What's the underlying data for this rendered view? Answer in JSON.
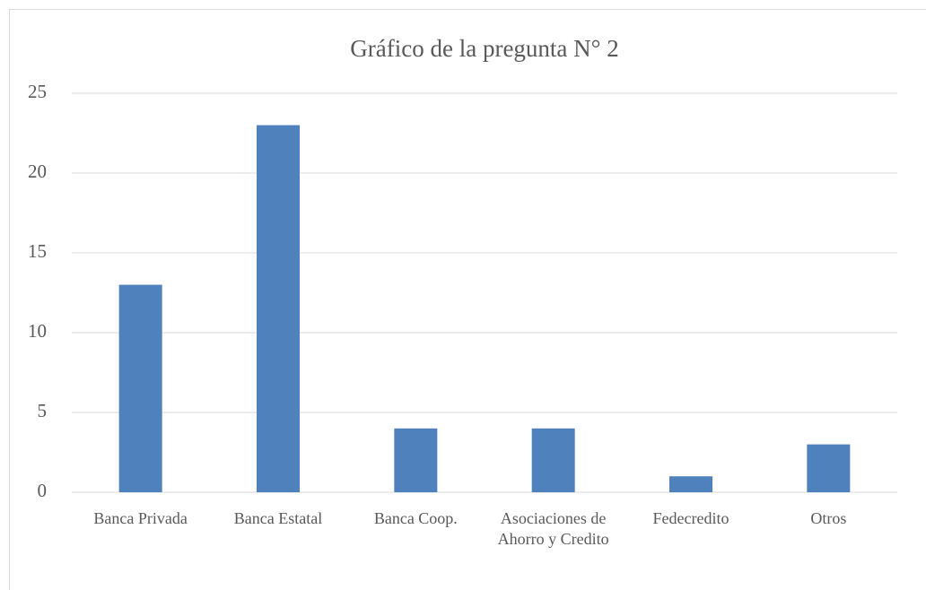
{
  "chart_data": {
    "type": "bar",
    "title": "Gráfico de la pregunta N° 2",
    "categories": [
      "Banca Privada",
      "Banca Estatal",
      "Banca Coop.",
      "Asociaciones de Ahorro y Credito",
      "Fedecredito",
      "Otros"
    ],
    "values": [
      13,
      23,
      4,
      4,
      1,
      3
    ],
    "color": "#4f81bd",
    "ylim": [
      0,
      25
    ],
    "yticks": [
      0,
      5,
      10,
      15,
      20,
      25
    ],
    "grid": true
  }
}
